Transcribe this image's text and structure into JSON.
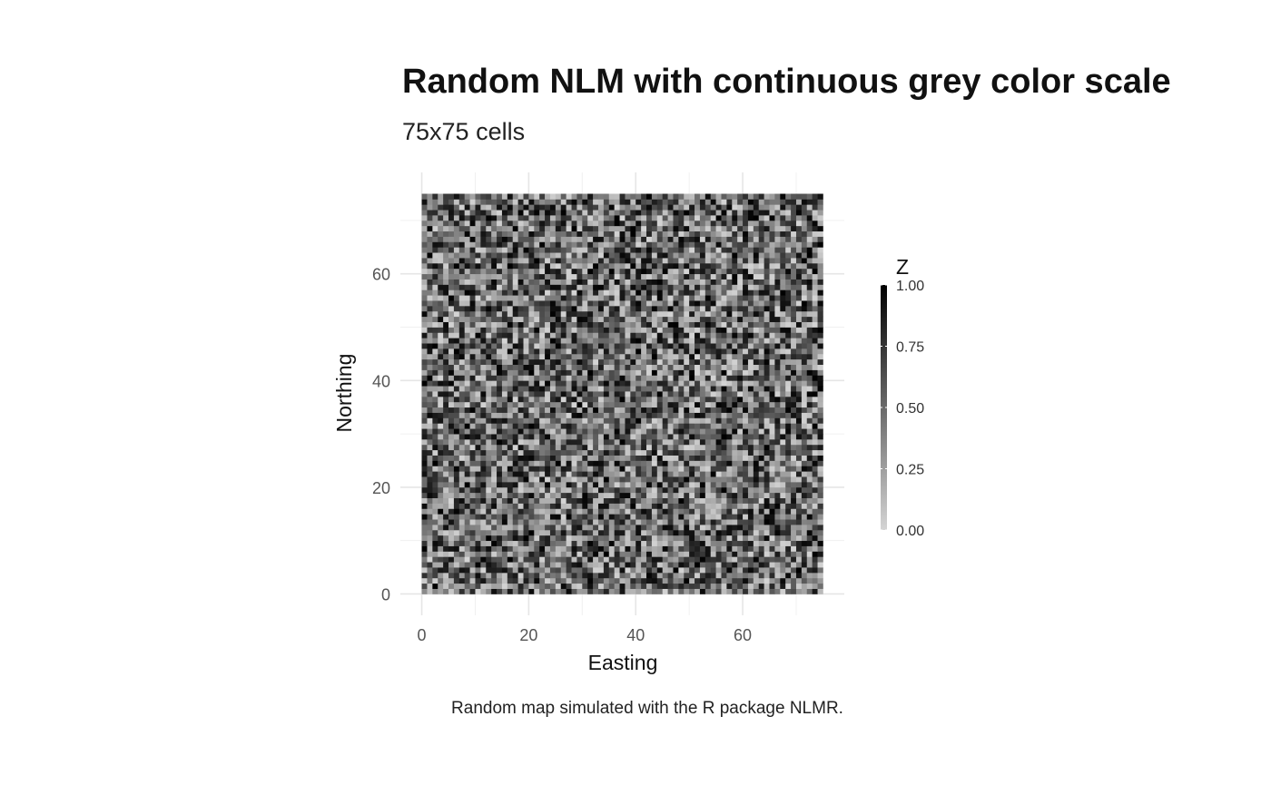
{
  "chart_data": {
    "type": "heatmap",
    "title": "Random NLM with continuous grey color scale",
    "subtitle": "75x75 cells",
    "xlabel": "Easting",
    "ylabel": "Northing",
    "caption": "Random map simulated with the R package NLMR.",
    "ncol": 75,
    "nrow": 75,
    "xlim": [
      -4,
      79
    ],
    "ylim": [
      -4,
      79
    ],
    "x_ticks": [
      0,
      20,
      40,
      60
    ],
    "y_ticks": [
      0,
      20,
      40,
      60
    ],
    "x_minor": [
      10,
      30,
      50,
      70
    ],
    "y_minor": [
      10,
      30,
      50,
      70
    ],
    "value_range": [
      0,
      1
    ],
    "color_low": "#d4d4d4",
    "color_high": "#000000",
    "legend": {
      "title": "Z",
      "ticks": [
        "0.00",
        "0.25",
        "0.50",
        "0.75",
        "1.00"
      ],
      "tick_values": [
        0,
        0.25,
        0.5,
        0.75,
        1.0
      ],
      "placement": "right"
    }
  }
}
